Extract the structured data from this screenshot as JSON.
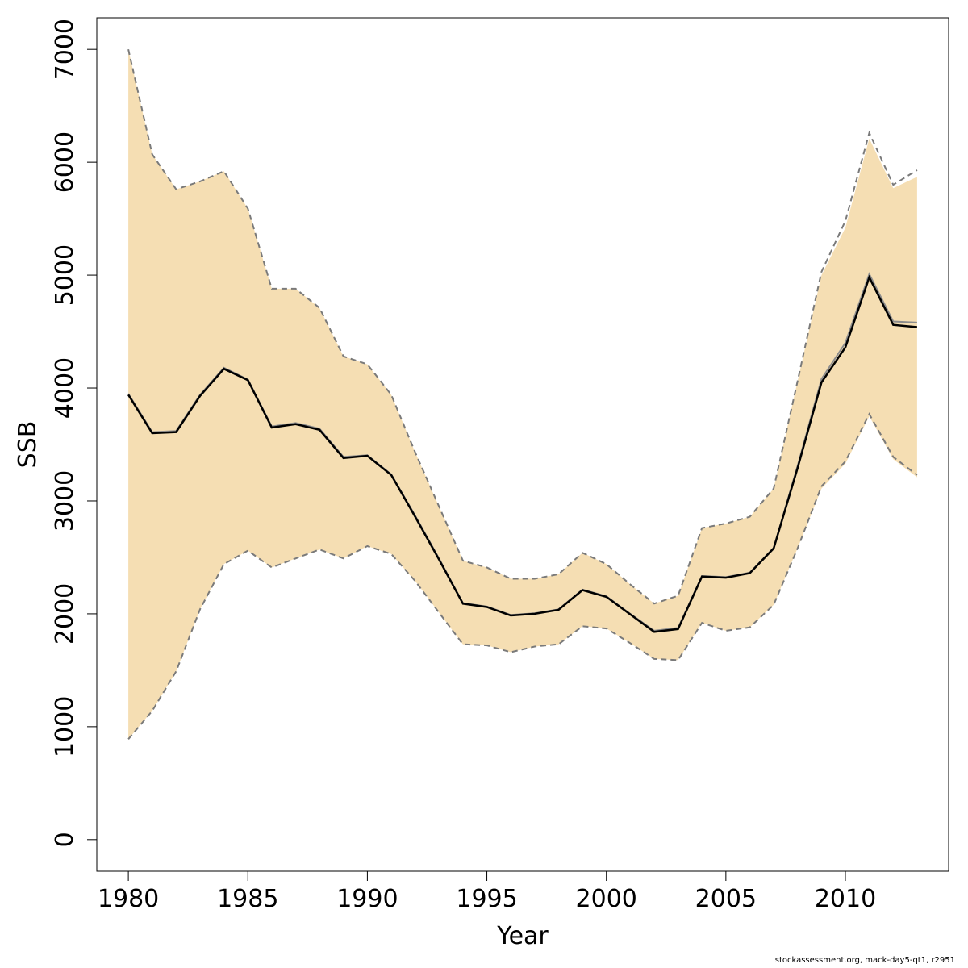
{
  "chart_data": {
    "type": "area",
    "xlabel": "Year",
    "ylabel": "SSB",
    "xlim": [
      1978.7,
      1977.0
    ],
    "ylim": [
      -280,
      7280
    ],
    "x_ticks": [
      1980,
      1985,
      1990,
      1995,
      2000,
      2005,
      2010
    ],
    "y_ticks": [
      0,
      1000,
      2000,
      3000,
      4000,
      5000,
      6000,
      7000
    ],
    "band_color": "#f5deb3",
    "x": [
      1980,
      1981,
      1982,
      1983,
      1984,
      1985,
      1986,
      1987,
      1988,
      1989,
      1990,
      1991,
      1992,
      1993,
      1994,
      1995,
      1996,
      1997,
      1998,
      1999,
      2000,
      2001,
      2002,
      2003,
      2004,
      2005,
      2006,
      2007,
      2008,
      2009,
      2010,
      2011,
      2012,
      2013
    ],
    "series": [
      {
        "values": [
          3940,
          3600,
          3610,
          3930,
          4170,
          4070,
          3650,
          3680,
          3630,
          3380,
          3400,
          3230,
          2860,
          2480,
          2090,
          2060,
          1985,
          2000,
          2035,
          2210,
          2150,
          1995,
          1840,
          1865,
          2330,
          2320,
          2360,
          2580,
          3290,
          4050,
          4360,
          4980,
          4560,
          4540
        ]
      },
      {
        "values": [
          3950,
          3610,
          3620,
          3940,
          4180,
          4075,
          3660,
          3690,
          3640,
          3390,
          3405,
          3235,
          2870,
          2490,
          2095,
          2065,
          1990,
          2005,
          2040,
          2215,
          2155,
          2000,
          1850,
          1875,
          2335,
          2325,
          2365,
          2585,
          3310,
          4080,
          4400,
          5010,
          4590,
          4580
        ]
      },
      {
        "values": [
          7000,
          6070,
          5760,
          5830,
          5920,
          5590,
          4880,
          4880,
          4710,
          4280,
          4210,
          3940,
          3430,
          2950,
          2470,
          2410,
          2310,
          2310,
          2350,
          2540,
          2440,
          2260,
          2090,
          2160,
          2760,
          2800,
          2860,
          3110,
          4060,
          5030,
          5480,
          6260,
          5800,
          5930
        ]
      },
      {
        "values": [
          890,
          1140,
          1490,
          2040,
          2440,
          2560,
          2410,
          2490,
          2570,
          2490,
          2600,
          2530,
          2290,
          2010,
          1730,
          1720,
          1660,
          1710,
          1730,
          1890,
          1870,
          1740,
          1600,
          1590,
          1920,
          1850,
          1880,
          2080,
          2580,
          3130,
          3350,
          3770,
          3390,
          3230
        ]
      },
      {
        "values": [
          7000,
          6070,
          5760,
          5830,
          5920,
          5590,
          4880,
          4880,
          4710,
          4280,
          4210,
          3940,
          3430,
          2950,
          2470,
          2410,
          2310,
          2310,
          2350,
          2540,
          2440,
          2260,
          2090,
          2160,
          2760,
          2800,
          2860,
          3110,
          4060,
          5000,
          5420,
          6210,
          5770,
          5870
        ]
      },
      {
        "values": [
          890,
          1140,
          1490,
          2040,
          2440,
          2560,
          2410,
          2490,
          2570,
          2490,
          2600,
          2530,
          2290,
          2010,
          1730,
          1720,
          1660,
          1710,
          1730,
          1890,
          1870,
          1740,
          1600,
          1590,
          1920,
          1850,
          1880,
          2080,
          2580,
          3110,
          3330,
          3750,
          3370,
          3210
        ]
      }
    ],
    "legend": "none",
    "grid": false
  },
  "footer": "stockassessment.org, mack-day5-qt1, r2951"
}
